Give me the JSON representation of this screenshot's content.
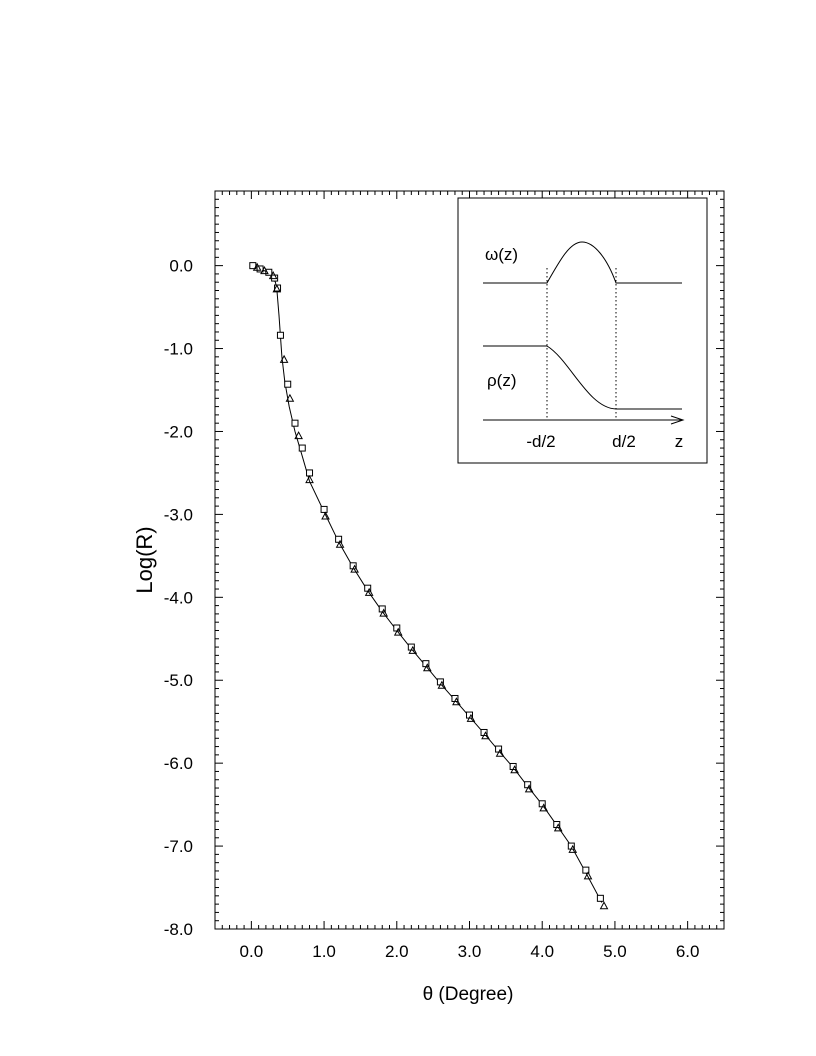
{
  "chart_data": {
    "type": "scatter",
    "xlabel": "θ (Degree)",
    "ylabel": "Log(R)",
    "xlim": [
      -0.5,
      6.5
    ],
    "ylim": [
      -8.0,
      0.9
    ],
    "xticks": [
      0.0,
      1.0,
      2.0,
      3.0,
      4.0,
      5.0,
      6.0
    ],
    "xtick_labels": [
      "0.0",
      "1.0",
      "2.0",
      "3.0",
      "4.0",
      "5.0",
      "6.0"
    ],
    "yticks": [
      0.0,
      -1.0,
      -2.0,
      -3.0,
      -4.0,
      -5.0,
      -6.0,
      -7.0,
      -8.0
    ],
    "ytick_labels": [
      "0.0",
      "-1.0",
      "-2.0",
      "-3.0",
      "-4.0",
      "-5.0",
      "-6.0",
      "-7.0",
      "-8.0"
    ],
    "grid": false,
    "series": [
      {
        "marker": "line",
        "x": [
          0.02,
          0.1,
          0.2,
          0.28,
          0.33,
          0.35,
          0.38,
          0.42,
          0.46,
          0.52,
          0.6,
          0.7,
          0.8,
          1.0,
          1.2,
          1.4,
          1.6,
          1.8,
          2.0,
          2.2,
          2.4,
          2.6,
          2.8,
          3.0,
          3.2,
          3.4,
          3.6,
          3.8,
          4.0,
          4.2,
          4.4,
          4.6,
          4.82
        ],
        "y": [
          0.0,
          -0.03,
          -0.07,
          -0.12,
          -0.2,
          -0.28,
          -0.6,
          -1.1,
          -1.4,
          -1.7,
          -2.0,
          -2.3,
          -2.6,
          -2.97,
          -3.33,
          -3.64,
          -3.92,
          -4.17,
          -4.4,
          -4.62,
          -4.83,
          -5.04,
          -5.24,
          -5.44,
          -5.64,
          -5.85,
          -6.05,
          -6.28,
          -6.5,
          -6.75,
          -7.0,
          -7.32,
          -7.68
        ]
      },
      {
        "marker": "square",
        "x": [
          0.02,
          0.12,
          0.24,
          0.32,
          0.36,
          0.4,
          0.5,
          0.6,
          0.7,
          0.8,
          1.0,
          1.2,
          1.4,
          1.6,
          1.8,
          2.0,
          2.2,
          2.4,
          2.6,
          2.8,
          3.0,
          3.2,
          3.4,
          3.6,
          3.8,
          4.0,
          4.2,
          4.4,
          4.6,
          4.8
        ],
        "y": [
          0.0,
          -0.04,
          -0.08,
          -0.15,
          -0.27,
          -0.84,
          -1.43,
          -1.9,
          -2.2,
          -2.5,
          -2.94,
          -3.3,
          -3.62,
          -3.89,
          -4.14,
          -4.37,
          -4.6,
          -4.8,
          -5.02,
          -5.22,
          -5.42,
          -5.63,
          -5.83,
          -6.04,
          -6.26,
          -6.49,
          -6.74,
          -7.0,
          -7.29,
          -7.63
        ]
      },
      {
        "marker": "triangle",
        "x": [
          0.08,
          0.18,
          0.3,
          0.35,
          0.45,
          0.53,
          0.65,
          0.8,
          1.02,
          1.22,
          1.42,
          1.62,
          1.82,
          2.02,
          2.22,
          2.42,
          2.62,
          2.82,
          3.02,
          3.22,
          3.42,
          3.62,
          3.82,
          4.02,
          4.22,
          4.42,
          4.63,
          4.85
        ],
        "y": [
          -0.02,
          -0.06,
          -0.12,
          -0.28,
          -1.13,
          -1.6,
          -2.05,
          -2.58,
          -3.02,
          -3.36,
          -3.66,
          -3.94,
          -4.19,
          -4.42,
          -4.64,
          -4.85,
          -5.06,
          -5.26,
          -5.46,
          -5.67,
          -5.88,
          -6.08,
          -6.31,
          -6.54,
          -6.78,
          -7.04,
          -7.36,
          -7.72
        ]
      }
    ],
    "inset": {
      "omega_label": "ω(z)",
      "rho_label": "ρ(z)",
      "x_labels": [
        "-d/2",
        "d/2",
        "z"
      ]
    }
  }
}
